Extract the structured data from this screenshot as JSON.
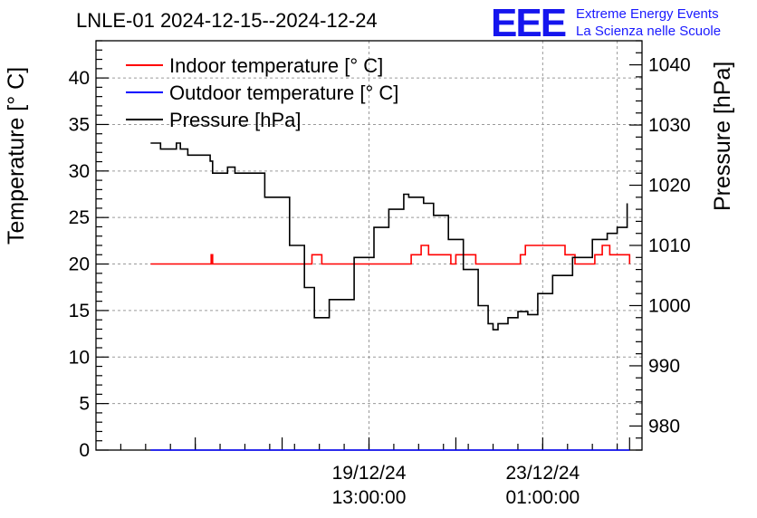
{
  "chart_data": {
    "type": "line",
    "title": "LNLE-01 2024-12-15--2024-12-24",
    "ylabel": "Temperature [° C]",
    "y2label": "Pressure [hPa]",
    "ylim": [
      0,
      44
    ],
    "y2lim": [
      976,
      1044
    ],
    "y_ticks": [
      "0",
      "5",
      "10",
      "15",
      "20",
      "25",
      "30",
      "35",
      "40"
    ],
    "y2_ticks": [
      "980",
      "990",
      "1000",
      "1010",
      "1020",
      "1030",
      "1040"
    ],
    "x_ticks": [
      {
        "line1": "19/12/24",
        "line2": "13:00:00",
        "x": 4.5
      },
      {
        "line1": "23/12/24",
        "line2": "01:00:00",
        "x": 8.0
      }
    ],
    "xlim": [
      -1.0,
      10.0
    ],
    "grid": true,
    "legend_position": "top-left",
    "legend": [
      "Indoor temperature [° C]",
      "Outdoor temperature [° C]",
      "Pressure [hPa]"
    ],
    "series": [
      {
        "name": "Indoor temperature [° C]",
        "axis": "left",
        "color": "#ff0000",
        "x": [
          0.1,
          1.3,
          1.32,
          1.35,
          3.3,
          3.35,
          3.5,
          3.55,
          5.3,
          5.35,
          5.5,
          5.55,
          5.65,
          5.7,
          6.1,
          6.15,
          6.2,
          6.25,
          6.6,
          6.65,
          7.5,
          7.55,
          7.6,
          7.65,
          8.4,
          8.45,
          8.6,
          8.65,
          9.0,
          9.05,
          9.15,
          9.2,
          9.3,
          9.35,
          9.7,
          9.75
        ],
        "values": [
          20,
          20,
          21,
          20,
          20,
          21,
          21,
          20,
          20,
          21,
          21,
          22,
          22,
          21,
          21,
          20,
          20,
          21,
          21,
          20,
          20,
          21,
          21,
          22,
          22,
          21,
          21,
          20,
          20,
          21,
          21,
          22,
          22,
          21,
          21,
          20
        ]
      },
      {
        "name": "Outdoor temperature [° C]",
        "axis": "left",
        "color": "#0000ff",
        "x": [
          0.1,
          9.75
        ],
        "values": [
          0,
          0
        ]
      },
      {
        "name": "Pressure [hPa]",
        "axis": "right",
        "color": "#000000",
        "x": [
          0.1,
          0.25,
          0.3,
          0.6,
          0.62,
          0.7,
          0.8,
          0.85,
          1.2,
          1.3,
          1.35,
          1.6,
          1.65,
          1.8,
          2.4,
          2.9,
          3.2,
          3.4,
          3.5,
          3.7,
          4.2,
          4.6,
          4.9,
          5.2,
          5.3,
          5.6,
          5.8,
          6.1,
          6.4,
          6.7,
          6.9,
          7.0,
          7.1,
          7.3,
          7.5,
          7.7,
          7.9,
          8.2,
          8.6,
          9.0,
          9.3,
          9.5,
          9.7
        ],
        "values": [
          1027,
          1027,
          1026,
          1026,
          1027,
          1026,
          1026,
          1025,
          1025,
          1024,
          1022,
          1022,
          1023,
          1022,
          1018,
          1010,
          1003,
          998,
          998,
          1001,
          1008,
          1013,
          1016,
          1018.5,
          1018,
          1017,
          1015,
          1011,
          1006,
          1000,
          997,
          996,
          997,
          998,
          999,
          998.5,
          1002,
          1005,
          1008,
          1011,
          1012,
          1013,
          1017
        ]
      }
    ]
  },
  "brand": {
    "logo_text": "EEE",
    "line1": "Extreme Energy Events",
    "line2": "La Scienza nelle Scuole"
  }
}
